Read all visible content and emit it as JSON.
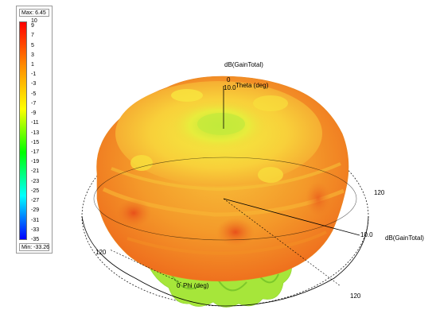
{
  "legend": {
    "max_label": "Max: 6.45",
    "min_label": "Min: -33.26",
    "ticks": [
      "10",
      "9",
      "7",
      "5",
      "3",
      "1",
      "-1",
      "-3",
      "-5",
      "-7",
      "-9",
      "-11",
      "-13",
      "-15",
      "-17",
      "-19",
      "-21",
      "-23",
      "-25",
      "-27",
      "-29",
      "-31",
      "-33",
      "-35"
    ],
    "range": [
      10,
      -35
    ],
    "colors": [
      "#ff0000",
      "#ff8c00",
      "#ffff00",
      "#00ff00",
      "#00ffff",
      "#0000ff"
    ]
  },
  "plot": {
    "z_axis_title": "dB(GainTotal)",
    "z_label_0": "0",
    "z_label_10": "10.0",
    "theta_label": "Theta (deg)",
    "x_label_120_right": "120",
    "x_label_10": "10.0",
    "x_axis_title": "dB(GainTotal)",
    "x_label_120_left": "120",
    "phi_label_0": "0",
    "phi_label": "Phi (deg)",
    "x_label_120_bottom": "120"
  }
}
